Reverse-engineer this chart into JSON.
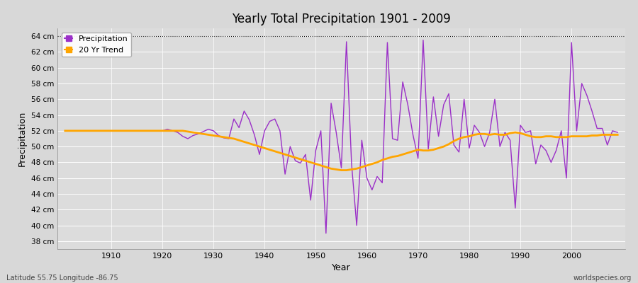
{
  "title": "Yearly Total Precipitation 1901 - 2009",
  "xlabel": "Year",
  "ylabel": "Precipitation",
  "subtitle_lat_lon": "Latitude 55.75 Longitude -86.75",
  "watermark": "worldspecies.org",
  "start_year": 1901,
  "end_year": 2009,
  "ylim": [
    37.0,
    65.0
  ],
  "yticks": [
    38,
    40,
    42,
    44,
    46,
    48,
    50,
    52,
    54,
    56,
    58,
    60,
    62,
    64
  ],
  "ytick_labels": [
    "38 cm",
    "40 cm",
    "42 cm",
    "44 cm",
    "46 cm",
    "48 cm",
    "50 cm",
    "52 cm",
    "54 cm",
    "56 cm",
    "58 cm",
    "60 cm",
    "62 cm",
    "64 cm"
  ],
  "xticks": [
    1910,
    1920,
    1930,
    1940,
    1950,
    1960,
    1970,
    1980,
    1990,
    2000
  ],
  "precip_color": "#9B30C8",
  "trend_color": "#FFA500",
  "bg_color": "#D8D8D8",
  "plot_bg_color": "#DCDCDC",
  "grid_color": "#FFFFFF",
  "top_dotted_line_y": 64,
  "precipitation": [
    52.0,
    52.0,
    52.0,
    52.0,
    52.0,
    52.0,
    52.0,
    52.0,
    52.0,
    52.0,
    52.0,
    52.0,
    52.0,
    52.0,
    52.0,
    52.0,
    52.0,
    52.0,
    52.0,
    52.0,
    52.2,
    52.0,
    51.8,
    51.3,
    51.0,
    51.4,
    51.6,
    51.9,
    52.2,
    52.0,
    51.4,
    51.1,
    51.0,
    53.5,
    52.4,
    54.5,
    53.4,
    51.5,
    49.0,
    52.0,
    53.2,
    53.5,
    52.0,
    46.5,
    50.0,
    48.2,
    47.9,
    49.0,
    43.2,
    49.5,
    52.0,
    39.0,
    55.5,
    51.8,
    47.3,
    63.3,
    47.8,
    40.0,
    50.8,
    46.0,
    44.5,
    46.2,
    45.4,
    63.2,
    51.0,
    50.8,
    58.2,
    55.3,
    51.5,
    48.5,
    63.5,
    49.7,
    56.3,
    51.3,
    55.3,
    56.7,
    50.2,
    49.3,
    56.0,
    49.8,
    52.7,
    51.8,
    50.0,
    51.8,
    56.0,
    50.0,
    51.8,
    50.8,
    42.2,
    52.7,
    51.8,
    52.0,
    47.8,
    50.2,
    49.5,
    48.0,
    49.5,
    52.0,
    46.0,
    63.2,
    52.0,
    58.0,
    56.5,
    54.5,
    52.3,
    52.3,
    50.2,
    52.0,
    51.8
  ],
  "trend": [
    52.0,
    52.0,
    52.0,
    52.0,
    52.0,
    52.0,
    52.0,
    52.0,
    52.0,
    52.0,
    52.0,
    52.0,
    52.0,
    52.0,
    52.0,
    52.0,
    52.0,
    52.0,
    52.0,
    52.0,
    52.0,
    52.0,
    52.0,
    52.0,
    51.9,
    51.8,
    51.7,
    51.6,
    51.5,
    51.4,
    51.3,
    51.2,
    51.1,
    51.0,
    50.8,
    50.6,
    50.4,
    50.2,
    50.0,
    49.8,
    49.6,
    49.4,
    49.2,
    49.0,
    48.8,
    48.6,
    48.4,
    48.2,
    48.0,
    47.8,
    47.6,
    47.4,
    47.2,
    47.1,
    47.0,
    47.0,
    47.1,
    47.2,
    47.4,
    47.6,
    47.8,
    48.0,
    48.3,
    48.5,
    48.7,
    48.8,
    49.0,
    49.2,
    49.4,
    49.6,
    49.5,
    49.5,
    49.6,
    49.8,
    50.0,
    50.3,
    50.7,
    51.0,
    51.2,
    51.3,
    51.5,
    51.6,
    51.6,
    51.5,
    51.6,
    51.5,
    51.5,
    51.7,
    51.8,
    51.7,
    51.5,
    51.3,
    51.2,
    51.2,
    51.3,
    51.3,
    51.2,
    51.2,
    51.2,
    51.3,
    51.3,
    51.3,
    51.3,
    51.4,
    51.4,
    51.5,
    51.5,
    51.5,
    51.5
  ]
}
